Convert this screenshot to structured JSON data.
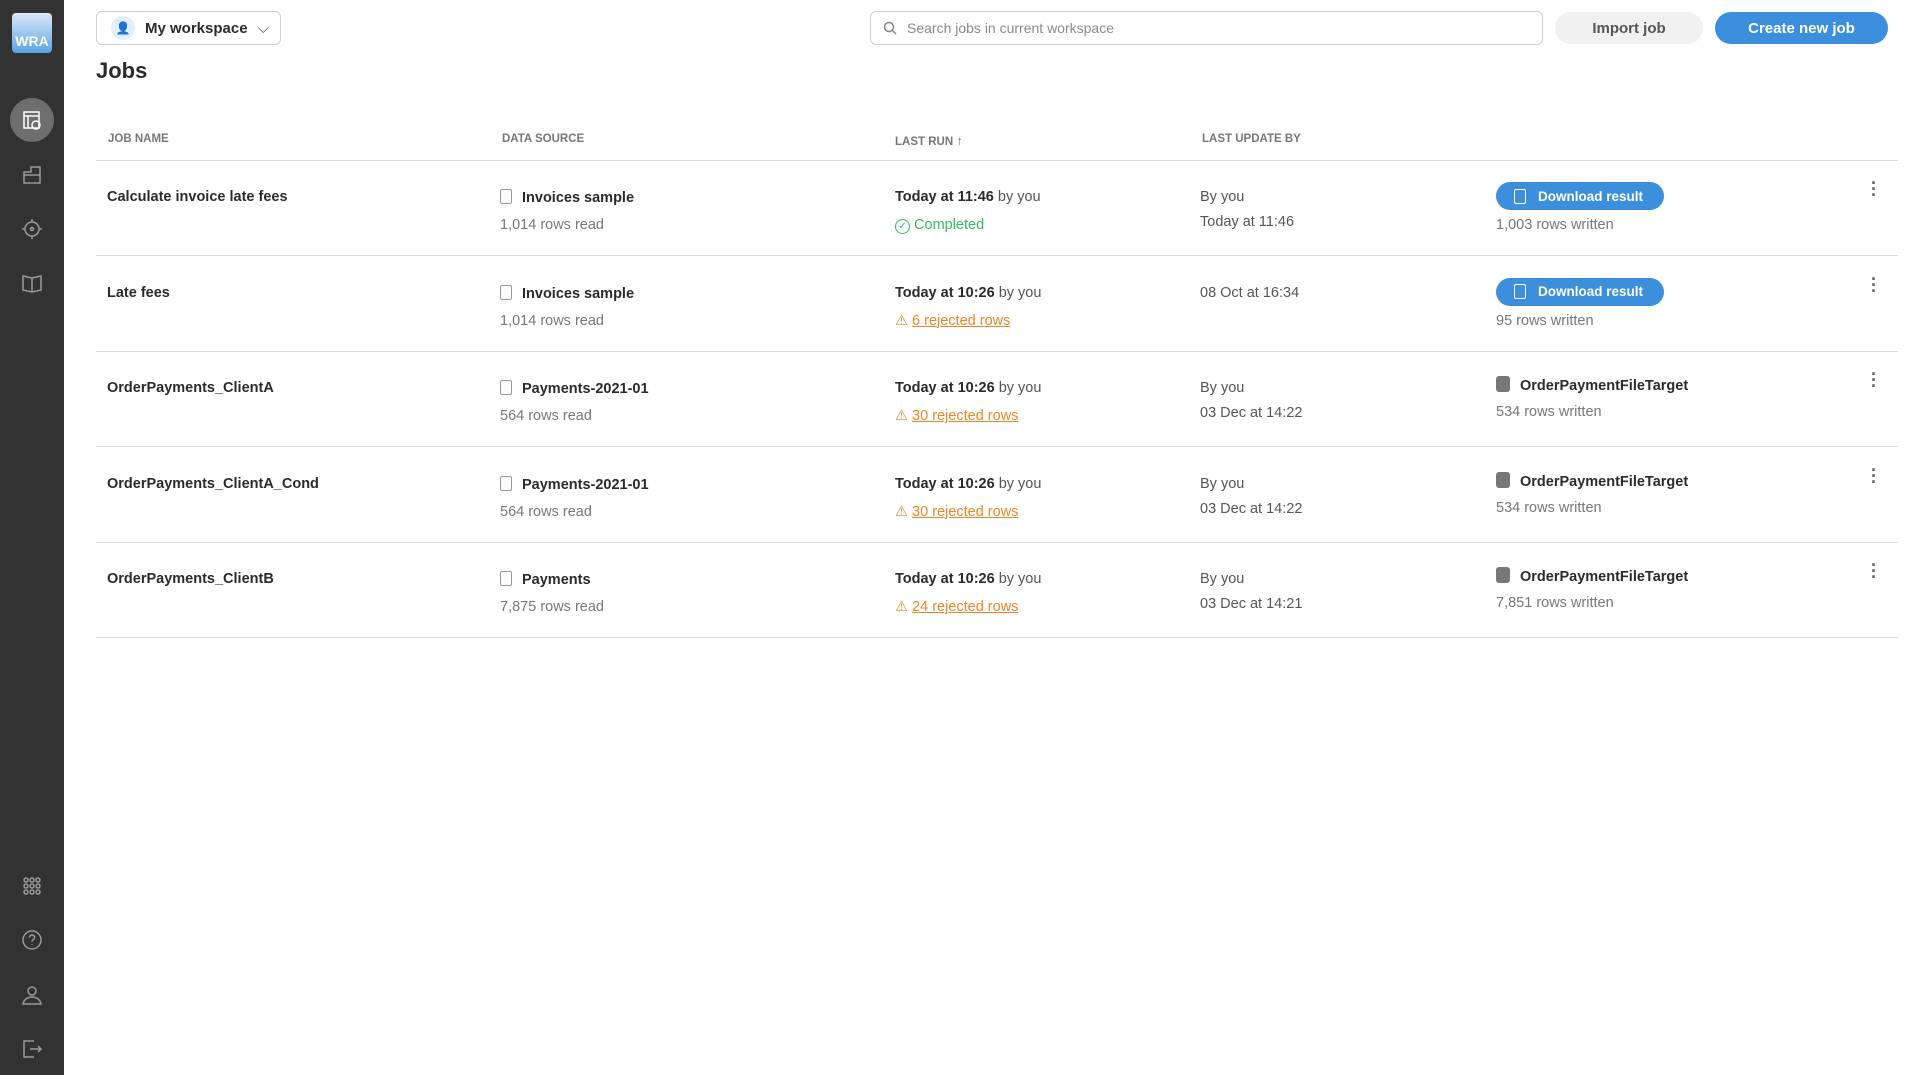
{
  "app": {
    "logo": "WRA"
  },
  "sidebar": {
    "items": [
      {
        "name": "jobs",
        "icon": "jobs-icon",
        "active": true
      },
      {
        "name": "folders",
        "icon": "folder-icon"
      },
      {
        "name": "targets",
        "icon": "crosshair-icon"
      },
      {
        "name": "docs",
        "icon": "book-icon"
      }
    ],
    "bottom": [
      {
        "icon": "apps-grid-icon"
      },
      {
        "icon": "help-icon"
      },
      {
        "icon": "user-icon"
      },
      {
        "icon": "logout-icon"
      }
    ]
  },
  "header": {
    "workspace": "My workspace",
    "search_placeholder": "Search jobs in current workspace",
    "import_label": "Import job",
    "create_label": "Create new job"
  },
  "page": {
    "title": "Jobs"
  },
  "table": {
    "columns": [
      "JOB NAME",
      "DATA SOURCE",
      "LAST RUN",
      "LAST UPDATE BY"
    ],
    "sort_indicator": "↑",
    "rows": [
      {
        "name": "Calculate invoice late fees",
        "source": "Invoices sample",
        "read": "1,014 rows read",
        "run_time": "Today at 11:46",
        "run_by": "by you",
        "status": "Completed",
        "status_type": "ok",
        "upd1": "By you",
        "upd2": "Today at 11:46",
        "result_type": "download",
        "result": "Download result",
        "written": "1,003 rows written"
      },
      {
        "name": "Late fees",
        "source": "Invoices sample",
        "read": "1,014 rows read",
        "run_time": "Today at 10:26",
        "run_by": "by you",
        "status": "6 rejected rows",
        "status_type": "warn",
        "upd1": "08 Oct at 16:34",
        "upd2": "",
        "result_type": "download",
        "result": "Download result",
        "written": "95 rows written"
      },
      {
        "name": "OrderPayments_ClientA",
        "source": "Payments-2021-01",
        "read": "564 rows read",
        "run_time": "Today at 10:26",
        "run_by": "by you",
        "status": "30 rejected rows",
        "status_type": "warn",
        "upd1": "By you",
        "upd2": "03 Dec at 14:22",
        "result_type": "target",
        "result": "OrderPaymentFileTarget",
        "written": "534 rows written"
      },
      {
        "name": "OrderPayments_ClientA_Cond",
        "source": "Payments-2021-01",
        "read": "564 rows read",
        "run_time": "Today at 10:26",
        "run_by": "by you",
        "status": "30 rejected rows",
        "status_type": "warn",
        "upd1": "By you",
        "upd2": "03 Dec at 14:22",
        "result_type": "target",
        "result": "OrderPaymentFileTarget",
        "written": "534 rows written"
      },
      {
        "name": "OrderPayments_ClientB",
        "source": "Payments",
        "read": "7,875 rows read",
        "run_time": "Today at 10:26",
        "run_by": "by you",
        "status": "24 rejected rows",
        "status_type": "warn",
        "upd1": "By you",
        "upd2": "03 Dec at 14:21",
        "result_type": "target",
        "result": "OrderPaymentFileTarget",
        "written": "7,851 rows written"
      }
    ]
  },
  "colors": {
    "accent": "#3b8fdd",
    "ok": "#2ebd59",
    "warn": "#e8862a",
    "sidebar": "#323232"
  }
}
